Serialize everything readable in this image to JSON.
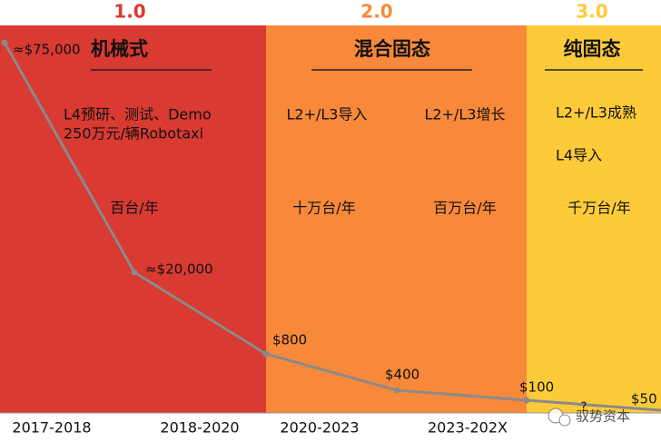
{
  "phases": [
    {
      "version": "1.0",
      "title": "机械式",
      "price": "≈$75,000",
      "lines": [
        "L4预研、测试、Demo",
        "250万元/辆Robotaxi"
      ],
      "volume": "百台/年"
    },
    {
      "version": "2.0",
      "title": "混合固态",
      "notes": [
        "L2+/L3导入",
        "L2+/L3增长"
      ],
      "volumes": [
        "十万台/年",
        "百万台/年"
      ]
    },
    {
      "version": "3.0",
      "title": "纯固态",
      "lines": [
        "L2+/L3成熟",
        "L4导入"
      ],
      "volume": "千万台/年"
    }
  ],
  "prices": [
    "≈$20,000",
    "$800",
    "$400",
    "$100",
    "$50"
  ],
  "periods": [
    "2017-2018",
    "2018-2020",
    "2020-2023",
    "2023-202X",
    "?"
  ],
  "watermark": "驭势资本"
}
